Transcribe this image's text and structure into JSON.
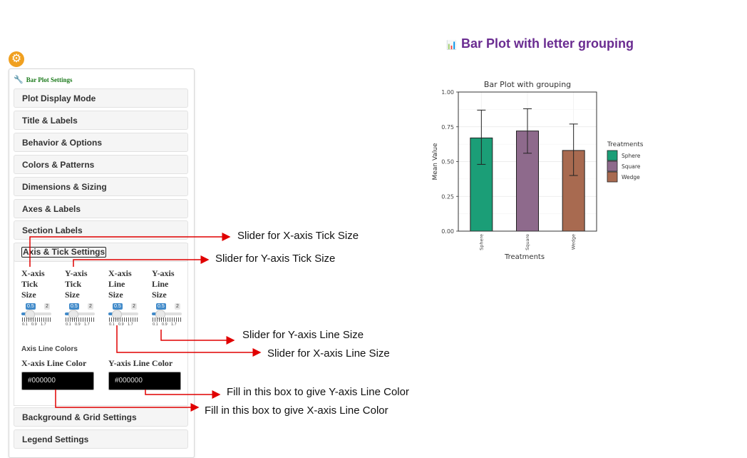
{
  "sidebar": {
    "header": "Bar Plot Settings",
    "sections": [
      {
        "label": "Plot Display Mode"
      },
      {
        "label": "Title & Labels"
      },
      {
        "label": "Behavior & Options"
      },
      {
        "label": "Colors & Patterns"
      },
      {
        "label": "Dimensions & Sizing"
      },
      {
        "label": "Axes & Labels"
      },
      {
        "label": "Section Labels"
      },
      {
        "label": "Axis & Tick Settings"
      },
      {
        "label": "Background & Grid Settings"
      },
      {
        "label": "Legend Settings"
      }
    ],
    "sliders": [
      {
        "label": "X-axis Tick Size",
        "value": "0.5",
        "max": "2",
        "ticks": [
          "0.1",
          "0.9",
          "1.7"
        ]
      },
      {
        "label": "Y-axis Tick Size",
        "value": "0.5",
        "max": "2",
        "ticks": [
          "0.1",
          "0.9",
          "1.7"
        ]
      },
      {
        "label": "X-axis Line Size",
        "value": "0.5",
        "max": "2",
        "ticks": [
          "0.1",
          "0.9",
          "1.7"
        ]
      },
      {
        "label": "Y-axis Line Size",
        "value": "0.5",
        "max": "2",
        "ticks": [
          "0.1",
          "0.9",
          "1.7"
        ]
      }
    ],
    "axis_line_colors_title": "Axis Line Colors",
    "x_line_color": {
      "label": "X-axis Line Color",
      "value": "#000000"
    },
    "y_line_color": {
      "label": "Y-axis Line Color",
      "value": "#000000"
    }
  },
  "annotations": [
    "Slider for X-axis Tick Size",
    "Slider for Y-axis Tick Size",
    "Slider for Y-axis Line Size",
    "Slider for X-axis Line Size",
    "Fill in this box to give Y-axis Line Color",
    "Fill in this box to give X-axis Line Color"
  ],
  "output": {
    "title": "Bar Plot with letter grouping"
  },
  "colors": {
    "accent": "#6a2c91",
    "arrow": "#e00000",
    "slider": "#428bca",
    "gear": "#f0a020"
  },
  "chart_data": {
    "type": "bar",
    "title": "Bar Plot with grouping",
    "xlabel": "Treatments",
    "ylabel": "Mean Value",
    "categories": [
      "Sphere",
      "Square",
      "Wedge"
    ],
    "values": [
      0.67,
      0.72,
      0.58
    ],
    "error_upper": [
      0.87,
      0.88,
      0.77
    ],
    "error_lower": [
      0.48,
      0.56,
      0.4
    ],
    "colors": [
      "#1b9e77",
      "#8e6a8c",
      "#a86a50"
    ],
    "ylim": [
      0,
      1.0
    ],
    "yticks": [
      "0.00",
      "0.25",
      "0.50",
      "0.75",
      "1.00"
    ],
    "grid": true,
    "legend": {
      "title": "Treatments",
      "position": "right"
    }
  }
}
